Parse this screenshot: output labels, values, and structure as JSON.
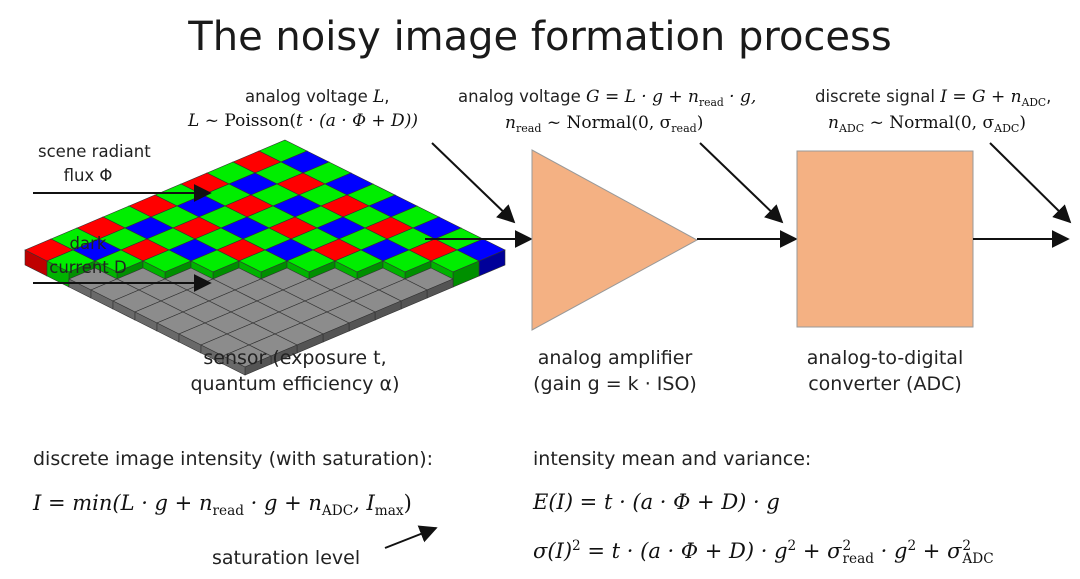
{
  "title": "The noisy image formation process",
  "labels": {
    "analog_voltage_L_prefix": "analog voltage ",
    "analog_voltage_L_var": "L",
    "analog_voltage_L_suffix": ",",
    "L_dist_lhs": "L",
    "L_dist_rhs": " ~ Poisson(",
    "L_dist_body": "t · (a · Φ + D))",
    "analog_voltage_G_prefix": "analog voltage ",
    "analog_voltage_G_eq": "G = L · g + n",
    "read": "read",
    "g_tail": " · g,",
    "n_read_lhs": "n",
    "n_read_rhs": " ~ Normal(0, σ",
    "n_read_close": ")",
    "discrete_signal_prefix": "discrete signal ",
    "discrete_signal_eq": "I = G + n",
    "ADC": "ADC",
    "discrete_signal_tail": ",",
    "n_adc_lhs": "n",
    "n_adc_rhs": " ~ Normal(0, σ",
    "n_adc_close": ")",
    "scene_radiant": "scene radiant",
    "flux": "flux Φ",
    "dark": "dark",
    "current": "current D"
  },
  "captions": {
    "sensor_line1": "sensor (exposure t,",
    "sensor_line2": "quantum efficiency α)",
    "amp_line1": "analog amplifier",
    "amp_line2": "(gain g = k · ISO)",
    "adc_line1": "analog-to-digital",
    "adc_line2": "converter (ADC)"
  },
  "bottom": {
    "left_heading": "discrete image intensity (with saturation):",
    "left_eq_a": "I = min(L · g + n",
    "left_eq_read": "read",
    "left_eq_b": " · g + n",
    "left_eq_adc": "ADC",
    "left_eq_c": ", I",
    "left_eq_max": "max",
    "left_eq_d": ")",
    "saturation": "saturation level",
    "right_heading": "intensity mean and variance:",
    "mean_eq": "E(I) = t · (a · Φ + D) · g",
    "var_eq_a": "σ(I)",
    "var_eq_b": " = t · (a · Φ + D) · g",
    "var_eq_c": " + σ",
    "var_eq_d": " · g",
    "var_eq_e": " + σ",
    "two": "2",
    "read": "read",
    "ADC": "ADC"
  },
  "colors": {
    "amplifier_fill": "#f4b183",
    "adc_fill": "#f4b183",
    "bayer_red": "#ff0000",
    "bayer_green": "#00ee00",
    "bayer_blue": "#0000ff",
    "sensor_gray": "#8c8c8c"
  }
}
